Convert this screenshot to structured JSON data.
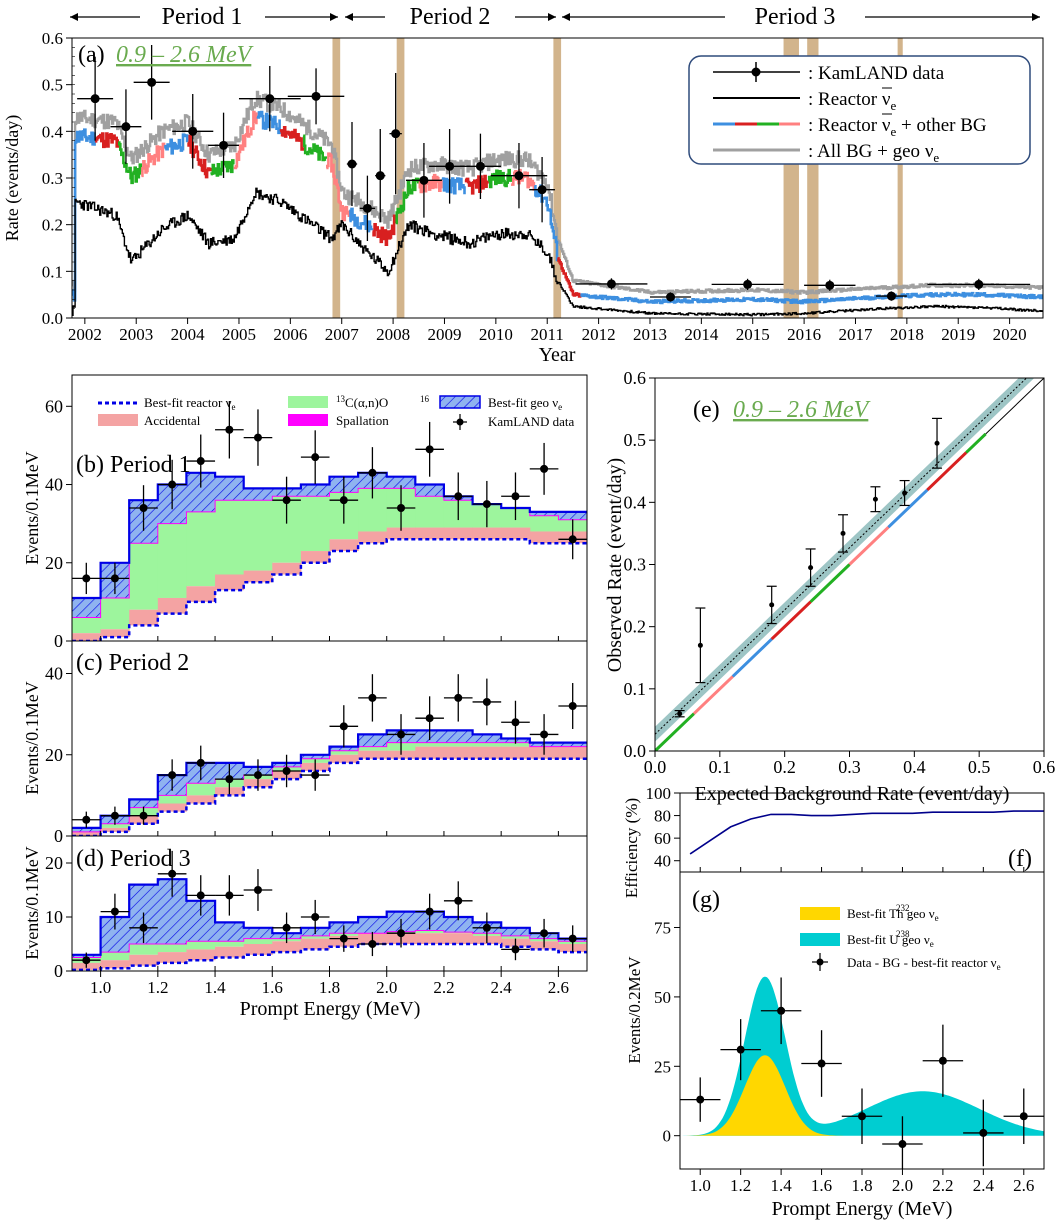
{
  "periods": {
    "labels": [
      "Period 1",
      "Period 2",
      "Period 3"
    ]
  },
  "chart_data": [
    {
      "id": "a",
      "type": "line",
      "panel_label": "(a)",
      "energy_window": "0.9 – 2.6 MeV",
      "xlabel": "Year",
      "ylabel": "Rate (events/day)",
      "xlim": [
        2001.75,
        2020.65
      ],
      "ylim": [
        0,
        0.6
      ],
      "xticks": [
        2002,
        2003,
        2004,
        2005,
        2006,
        2007,
        2008,
        2009,
        2010,
        2011,
        2012,
        2013,
        2014,
        2015,
        2016,
        2017,
        2018,
        2019,
        2020
      ],
      "yticks": [
        0.0,
        0.1,
        0.2,
        0.3,
        0.4,
        0.5,
        0.6
      ],
      "period_boundaries": [
        2006.85,
        2011.2
      ],
      "shaded_bands": [
        [
          2006.82,
          2006.97
        ],
        [
          2008.07,
          2008.22
        ],
        [
          2011.12,
          2011.27
        ],
        [
          2015.6,
          2015.9
        ],
        [
          2016.06,
          2016.28
        ],
        [
          2017.82,
          2017.92
        ]
      ],
      "legend": {
        "data": ": KamLAND data",
        "reactor": ": Reactor ",
        "reactor_bg": ": Reactor ",
        "reactor_bg_tail": " + other BG",
        "all_bg": ": All BG + geo ",
        "nu_symbol": "ν",
        "nu_sub": "e"
      },
      "data_points": [
        {
          "x": 2002.2,
          "y": 0.47,
          "xerr": 0.35,
          "yerr": 0.09
        },
        {
          "x": 2002.8,
          "y": 0.41,
          "xerr": 0.3,
          "yerr": 0.08
        },
        {
          "x": 2003.3,
          "y": 0.505,
          "xerr": 0.35,
          "yerr": 0.08
        },
        {
          "x": 2004.1,
          "y": 0.4,
          "xerr": 0.4,
          "yerr": 0.08
        },
        {
          "x": 2004.7,
          "y": 0.37,
          "xerr": 0.3,
          "yerr": 0.07
        },
        {
          "x": 2005.6,
          "y": 0.47,
          "xerr": 0.6,
          "yerr": 0.07
        },
        {
          "x": 2006.5,
          "y": 0.475,
          "xerr": 0.55,
          "yerr": 0.06
        },
        {
          "x": 2007.2,
          "y": 0.33,
          "xerr": 0.1,
          "yerr": 0.09
        },
        {
          "x": 2007.5,
          "y": 0.235,
          "xerr": 0.15,
          "yerr": 0.07
        },
        {
          "x": 2007.75,
          "y": 0.305,
          "xerr": 0.1,
          "yerr": 0.1
        },
        {
          "x": 2008.05,
          "y": 0.395,
          "xerr": 0.12,
          "yerr": 0.13
        },
        {
          "x": 2008.6,
          "y": 0.295,
          "xerr": 0.35,
          "yerr": 0.08
        },
        {
          "x": 2009.1,
          "y": 0.325,
          "xerr": 0.4,
          "yerr": 0.08
        },
        {
          "x": 2009.7,
          "y": 0.325,
          "xerr": 0.4,
          "yerr": 0.07
        },
        {
          "x": 2010.45,
          "y": 0.305,
          "xerr": 0.55,
          "yerr": 0.07
        },
        {
          "x": 2010.9,
          "y": 0.275,
          "xerr": 0.25,
          "yerr": 0.07
        },
        {
          "x": 2012.25,
          "y": 0.073,
          "xerr": 0.7,
          "yerr": 0.012
        },
        {
          "x": 2013.4,
          "y": 0.045,
          "xerr": 0.4,
          "yerr": 0.01
        },
        {
          "x": 2014.9,
          "y": 0.072,
          "xerr": 0.7,
          "yerr": 0.012
        },
        {
          "x": 2016.5,
          "y": 0.07,
          "xerr": 0.5,
          "yerr": 0.012
        },
        {
          "x": 2017.7,
          "y": 0.047,
          "xerr": 0.3,
          "yerr": 0.01
        },
        {
          "x": 2019.4,
          "y": 0.072,
          "xerr": 1.0,
          "yerr": 0.012
        }
      ],
      "series_approx": {
        "reactor": [
          [
            2001.8,
            0.25
          ],
          [
            2002.6,
            0.22
          ],
          [
            2002.9,
            0.12
          ],
          [
            2003.5,
            0.19
          ],
          [
            2004.0,
            0.22
          ],
          [
            2004.4,
            0.16
          ],
          [
            2004.9,
            0.17
          ],
          [
            2005.3,
            0.27
          ],
          [
            2005.8,
            0.25
          ],
          [
            2006.3,
            0.21
          ],
          [
            2006.8,
            0.17
          ],
          [
            2007.0,
            0.2
          ],
          [
            2007.5,
            0.14
          ],
          [
            2007.9,
            0.1
          ],
          [
            2008.3,
            0.2
          ],
          [
            2008.8,
            0.18
          ],
          [
            2009.5,
            0.16
          ],
          [
            2010.0,
            0.18
          ],
          [
            2010.6,
            0.18
          ],
          [
            2011.0,
            0.14
          ],
          [
            2011.2,
            0.08
          ],
          [
            2011.5,
            0.025
          ],
          [
            2013.0,
            0.01
          ],
          [
            2015.0,
            0.007
          ],
          [
            2016.0,
            0.01
          ],
          [
            2017.5,
            0.02
          ],
          [
            2018.5,
            0.025
          ],
          [
            2019.5,
            0.022
          ],
          [
            2020.6,
            0.015
          ]
        ],
        "reactor_bg": [
          [
            2001.8,
            0.39
          ],
          [
            2002.6,
            0.38
          ],
          [
            2002.9,
            0.3
          ],
          [
            2003.5,
            0.36
          ],
          [
            2004.0,
            0.38
          ],
          [
            2004.4,
            0.31
          ],
          [
            2004.9,
            0.33
          ],
          [
            2005.3,
            0.43
          ],
          [
            2005.8,
            0.41
          ],
          [
            2006.3,
            0.37
          ],
          [
            2006.8,
            0.33
          ],
          [
            2007.0,
            0.23
          ],
          [
            2007.5,
            0.2
          ],
          [
            2007.9,
            0.17
          ],
          [
            2008.3,
            0.28
          ],
          [
            2008.8,
            0.29
          ],
          [
            2009.5,
            0.28
          ],
          [
            2010.0,
            0.3
          ],
          [
            2010.6,
            0.3
          ],
          [
            2011.0,
            0.25
          ],
          [
            2011.2,
            0.13
          ],
          [
            2011.5,
            0.05
          ],
          [
            2013.0,
            0.035
          ],
          [
            2015.0,
            0.04
          ],
          [
            2016.0,
            0.035
          ],
          [
            2017.5,
            0.045
          ],
          [
            2018.5,
            0.05
          ],
          [
            2019.5,
            0.05
          ],
          [
            2020.6,
            0.045
          ]
        ],
        "all_bg_geo": [
          [
            2001.8,
            0.43
          ],
          [
            2002.6,
            0.42
          ],
          [
            2002.9,
            0.34
          ],
          [
            2003.5,
            0.4
          ],
          [
            2004.0,
            0.42
          ],
          [
            2004.4,
            0.35
          ],
          [
            2004.9,
            0.37
          ],
          [
            2005.3,
            0.47
          ],
          [
            2005.8,
            0.45
          ],
          [
            2006.3,
            0.41
          ],
          [
            2006.8,
            0.37
          ],
          [
            2007.0,
            0.27
          ],
          [
            2007.5,
            0.24
          ],
          [
            2007.9,
            0.21
          ],
          [
            2008.3,
            0.32
          ],
          [
            2008.8,
            0.33
          ],
          [
            2009.5,
            0.32
          ],
          [
            2010.0,
            0.34
          ],
          [
            2010.6,
            0.34
          ],
          [
            2011.0,
            0.29
          ],
          [
            2011.2,
            0.17
          ],
          [
            2011.5,
            0.08
          ],
          [
            2013.0,
            0.055
          ],
          [
            2015.0,
            0.06
          ],
          [
            2016.0,
            0.055
          ],
          [
            2017.5,
            0.065
          ],
          [
            2018.5,
            0.07
          ],
          [
            2019.5,
            0.07
          ],
          [
            2020.6,
            0.065
          ]
        ]
      }
    },
    {
      "id": "b",
      "type": "bar",
      "panel_label": "(b) Period 1",
      "ylabel": "Events/0.1MeV",
      "ylim": [
        0,
        68
      ],
      "yticks": [
        0,
        20,
        40,
        60
      ],
      "xlim": [
        0.9,
        2.7
      ],
      "legend": {
        "reactor": "Best-fit reactor ",
        "accidental": "Accidental",
        "c13": "C(α,n)O",
        "c13_sup1": "13",
        "c13_sup2": "16",
        "spallation": "Spallation",
        "geo": "Best-fit geo ",
        "data": "KamLAND data",
        "nu_symbol": "ν",
        "nu_sub": "e"
      },
      "bin_edges": [
        0.9,
        1.0,
        1.1,
        1.2,
        1.3,
        1.4,
        1.5,
        1.6,
        1.7,
        1.8,
        1.9,
        2.0,
        2.1,
        2.2,
        2.3,
        2.4,
        2.5,
        2.6,
        2.7
      ],
      "reactor": [
        0,
        1,
        4,
        7,
        10,
        13,
        15,
        17,
        20,
        23,
        25,
        26,
        26,
        26,
        26,
        26,
        25,
        25
      ],
      "accidental": [
        2,
        3,
        8,
        11,
        14,
        17,
        18,
        20,
        23,
        26,
        28,
        29,
        29,
        29,
        29,
        29,
        28,
        28
      ],
      "c13": [
        6,
        11,
        25,
        30,
        33,
        36,
        36,
        37,
        37,
        38,
        39,
        39,
        37,
        36,
        35,
        34,
        32,
        31
      ],
      "geo_total": [
        11,
        20,
        36,
        40,
        43,
        42,
        39,
        39,
        40,
        42,
        43,
        42,
        40,
        37,
        35,
        34,
        33,
        33
      ],
      "data": [
        16,
        16,
        34,
        40,
        46,
        54,
        52,
        36,
        47,
        36,
        43,
        34,
        49,
        37,
        35,
        37,
        44,
        26
      ]
    },
    {
      "id": "c",
      "type": "bar",
      "panel_label": "(c) Period 2",
      "ylabel": "Events/0.1MeV",
      "ylim": [
        0,
        48
      ],
      "yticks": [
        0,
        20,
        40
      ],
      "xlim": [
        0.9,
        2.7
      ],
      "bin_edges": [
        0.9,
        1.0,
        1.1,
        1.2,
        1.3,
        1.4,
        1.5,
        1.6,
        1.7,
        1.8,
        1.9,
        2.0,
        2.1,
        2.2,
        2.3,
        2.4,
        2.5,
        2.6,
        2.7
      ],
      "reactor": [
        0,
        1,
        3,
        6,
        8,
        10,
        12,
        14,
        16,
        18,
        19,
        19,
        19,
        19,
        19,
        19,
        19,
        19
      ],
      "accidental": [
        1,
        2,
        5,
        8,
        10,
        12,
        14,
        16,
        18,
        20,
        21,
        21,
        22,
        22,
        22,
        22,
        22,
        22
      ],
      "c13": [
        1,
        3,
        7,
        10,
        13,
        14,
        15,
        17,
        19,
        21,
        22,
        23,
        23,
        23,
        23,
        23,
        22,
        22
      ],
      "geo_total": [
        2,
        5,
        9,
        15,
        18,
        18,
        17,
        18,
        20,
        22,
        25,
        26,
        26,
        26,
        25,
        24,
        23,
        23
      ],
      "data": [
        4,
        5,
        5,
        15,
        18,
        14,
        15,
        16,
        15,
        27,
        34,
        25,
        29,
        34,
        33,
        28,
        25,
        32
      ]
    },
    {
      "id": "d",
      "type": "bar",
      "panel_label": "(d) Period 3",
      "ylabel": "Events/0.1MeV",
      "ylim": [
        0,
        25
      ],
      "yticks": [
        0,
        10,
        20
      ],
      "xlim": [
        0.9,
        2.7
      ],
      "xlabel": "Prompt Energy (MeV)",
      "xticks": [
        1.0,
        1.2,
        1.4,
        1.6,
        1.8,
        2.0,
        2.2,
        2.4,
        2.6
      ],
      "bin_edges": [
        0.9,
        1.0,
        1.1,
        1.2,
        1.3,
        1.4,
        1.5,
        1.6,
        1.7,
        1.8,
        1.9,
        2.0,
        2.1,
        2.2,
        2.3,
        2.4,
        2.5,
        2.6,
        2.7
      ],
      "reactor": [
        0.2,
        0.5,
        1,
        1.5,
        2,
        2.5,
        3,
        3.5,
        4,
        4.5,
        5,
        5,
        5,
        5,
        5,
        4.5,
        4,
        3.5
      ],
      "accidental": [
        1.5,
        2,
        3,
        3.5,
        4,
        4.5,
        5,
        5.5,
        6,
        6.5,
        7,
        7,
        7,
        7,
        6.5,
        6,
        5.5,
        5
      ],
      "c13": [
        2.5,
        3.5,
        5,
        5,
        5.5,
        5.5,
        6,
        6,
        6.5,
        7,
        7,
        7.3,
        7.5,
        7.2,
        7,
        6.5,
        6,
        5.5
      ],
      "geo_total": [
        3,
        10,
        16,
        17,
        13,
        9,
        8,
        7,
        8,
        9,
        10,
        11,
        11,
        10,
        9,
        8,
        7,
        6
      ],
      "data": [
        2,
        11,
        8,
        18,
        14,
        14,
        15,
        8,
        10,
        6,
        5,
        7,
        11,
        13,
        8,
        4,
        7,
        6
      ]
    },
    {
      "id": "e",
      "type": "scatter",
      "panel_label": "(e)",
      "energy_window": "0.9 – 2.6 MeV",
      "xlabel": "Expected Background Rate (event/day)",
      "ylabel": "Observed Rate (event/day)",
      "xlim": [
        0,
        0.6
      ],
      "ylim": [
        0,
        0.6
      ],
      "xticks": [
        0.0,
        0.1,
        0.2,
        0.3,
        0.4,
        0.5,
        0.6
      ],
      "yticks": [
        0.0,
        0.1,
        0.2,
        0.3,
        0.4,
        0.5,
        0.6
      ],
      "points": [
        {
          "x": 0.038,
          "y": 0.06,
          "yerr": 0.005
        },
        {
          "x": 0.07,
          "y": 0.17,
          "yerr": 0.06
        },
        {
          "x": 0.18,
          "y": 0.235,
          "yerr": 0.03
        },
        {
          "x": 0.24,
          "y": 0.295,
          "yerr": 0.03
        },
        {
          "x": 0.29,
          "y": 0.35,
          "yerr": 0.03
        },
        {
          "x": 0.34,
          "y": 0.405,
          "yerr": 0.02
        },
        {
          "x": 0.385,
          "y": 0.415,
          "yerr": 0.02
        },
        {
          "x": 0.435,
          "y": 0.495,
          "yerr": 0.04
        }
      ],
      "fit_line": {
        "intercept": 0.027,
        "slope": 1.0,
        "band_halfwidth": 0.012
      }
    },
    {
      "id": "f",
      "type": "line",
      "panel_label": "(f)",
      "ylabel": "Efficiency (%)",
      "ylim": [
        30,
        100
      ],
      "yticks": [
        40,
        60,
        80,
        100
      ],
      "x": [
        0.95,
        1.05,
        1.15,
        1.25,
        1.35,
        1.45,
        1.55,
        1.65,
        1.75,
        1.85,
        1.95,
        2.05,
        2.15,
        2.25,
        2.35,
        2.45,
        2.55,
        2.65,
        2.7
      ],
      "values": [
        46,
        58,
        70,
        77,
        81,
        81,
        80,
        80,
        81,
        82,
        82,
        82,
        83,
        83,
        83,
        83,
        84,
        84,
        84
      ]
    },
    {
      "id": "g",
      "type": "area",
      "panel_label": "(g)",
      "ylabel": "Events/0.2MeV",
      "xlabel": "Prompt Energy (MeV)",
      "xlim": [
        0.9,
        2.7
      ],
      "ylim": [
        -12,
        95
      ],
      "xticks": [
        1.0,
        1.2,
        1.4,
        1.6,
        1.8,
        2.0,
        2.2,
        2.4,
        2.6
      ],
      "yticks": [
        0,
        25,
        50,
        75
      ],
      "legend": {
        "th": "Best-fit Th geo ",
        "th_sup": "232",
        "u": "Best-fit U geo ",
        "u_sup": "238",
        "data": "Data - BG - best-fit reactor ",
        "nu_symbol": "ν",
        "nu_sub": "e"
      },
      "th_model": {
        "center": 1.32,
        "sigma": 0.1,
        "amplitude": 29
      },
      "u_model": {
        "peaks": [
          [
            1.32,
            0.1,
            57
          ],
          [
            2.1,
            0.28,
            16
          ]
        ]
      },
      "data": [
        {
          "x": 1.0,
          "y": 13,
          "yerr": 8
        },
        {
          "x": 1.2,
          "y": 31,
          "yerr": 11
        },
        {
          "x": 1.4,
          "y": 45,
          "yerr": 12
        },
        {
          "x": 1.6,
          "y": 26,
          "yerr": 12
        },
        {
          "x": 1.8,
          "y": 7,
          "yerr": 10
        },
        {
          "x": 2.0,
          "y": -3,
          "yerr": 10
        },
        {
          "x": 2.2,
          "y": 27,
          "yerr": 13
        },
        {
          "x": 2.4,
          "y": 1,
          "yerr": 12
        },
        {
          "x": 2.6,
          "y": 7,
          "yerr": 10
        }
      ]
    }
  ],
  "colors": {
    "reactor_only": "#000000",
    "reactor_bg_palette": [
      "#3d8fe0",
      "#d82020",
      "#22b022",
      "#ff8080"
    ],
    "all_bg": "#a0a0a0",
    "shade": "#d2b48c",
    "accidental": "#f4a3a3",
    "c13": "#9df59d",
    "spallation": "#ff00ff",
    "geo_fill": "#8fb3f0",
    "geo_edge": "#0000e6",
    "reactor_dash": "#0000e6",
    "window_label": "#6aab4f",
    "band": "#9dc5c5",
    "th": "#ffd700",
    "u": "#00cdd1",
    "efficiency": "#00008b"
  }
}
